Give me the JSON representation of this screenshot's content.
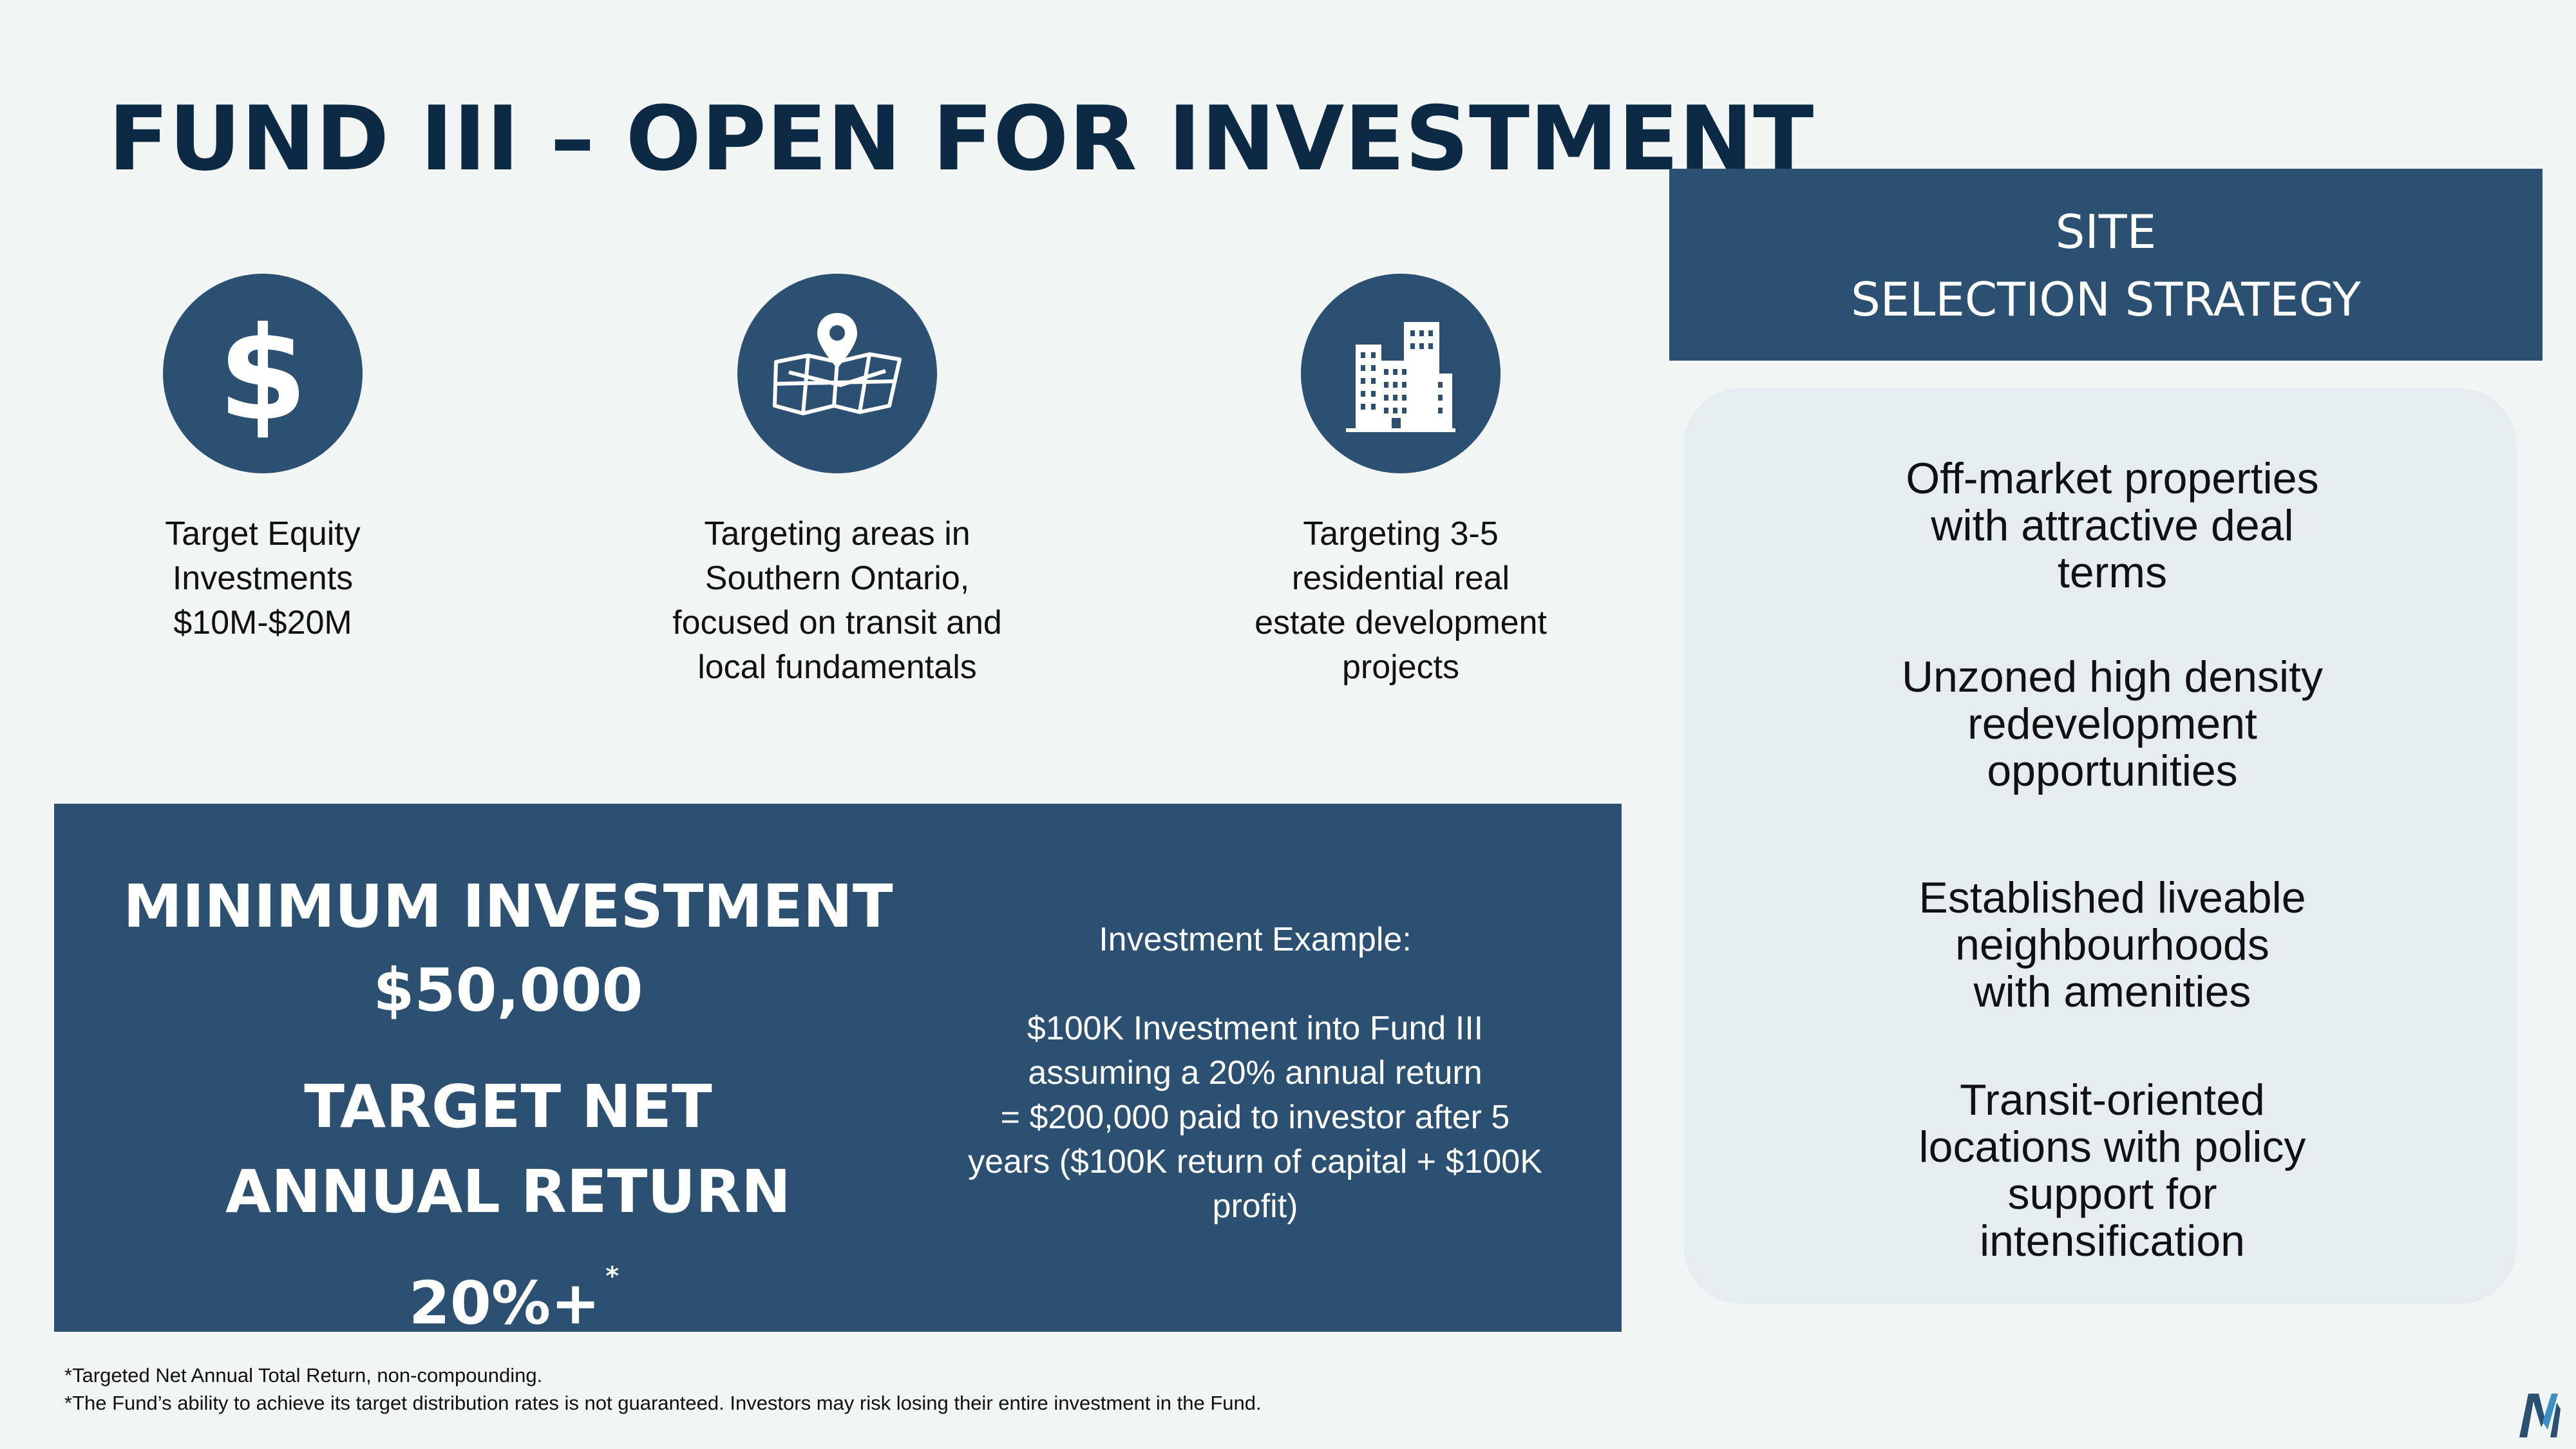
{
  "title": "FUND III – OPEN FOR INVESTMENT",
  "features": [
    {
      "icon": "dollar-icon",
      "caption": [
        "Target Equity",
        "Investments",
        "$10M-$20M"
      ]
    },
    {
      "icon": "map-pin-icon",
      "caption": [
        "Targeting areas in",
        "Southern Ontario,",
        "focused on transit and",
        "local fundamentals"
      ]
    },
    {
      "icon": "buildings-icon",
      "caption": [
        "Targeting 3-5",
        "residential real",
        "estate development",
        "projects"
      ]
    }
  ],
  "investment": {
    "min_label": "MINIMUM INVESTMENT",
    "min_value": "$50,000",
    "return_label": "TARGET NET ANNUAL RETURN",
    "return_value": "20%+",
    "return_marker": "*",
    "example_heading": "Investment Example:",
    "example_lines": [
      "$100K Investment into Fund III",
      "assuming a 20% annual return",
      "= $200,000 paid to investor after 5",
      "years ($100K return of capital + $100K",
      "profit)"
    ]
  },
  "site_selection": {
    "heading_line1": "SITE",
    "heading_line2": "SELECTION STRATEGY",
    "items": [
      [
        "Off-market properties",
        "with attractive deal",
        "terms"
      ],
      [
        "Unzoned high density",
        "redevelopment",
        "opportunities"
      ],
      [
        "Established liveable",
        "neighbourhoods",
        "with amenities"
      ],
      [
        "Transit-oriented",
        "locations with policy",
        "support for",
        "intensification"
      ]
    ]
  },
  "footnotes": [
    "*Targeted Net Annual Total Return, non-compounding.",
    "*The Fund’s ability to achieve its target distribution rates is not guaranteed. Investors may risk losing their entire investment in the Fund."
  ],
  "colors": {
    "navy": "#2b5072",
    "title": "#0d2a45",
    "background": "#f1f5f4",
    "panel": "#e5edf0"
  }
}
